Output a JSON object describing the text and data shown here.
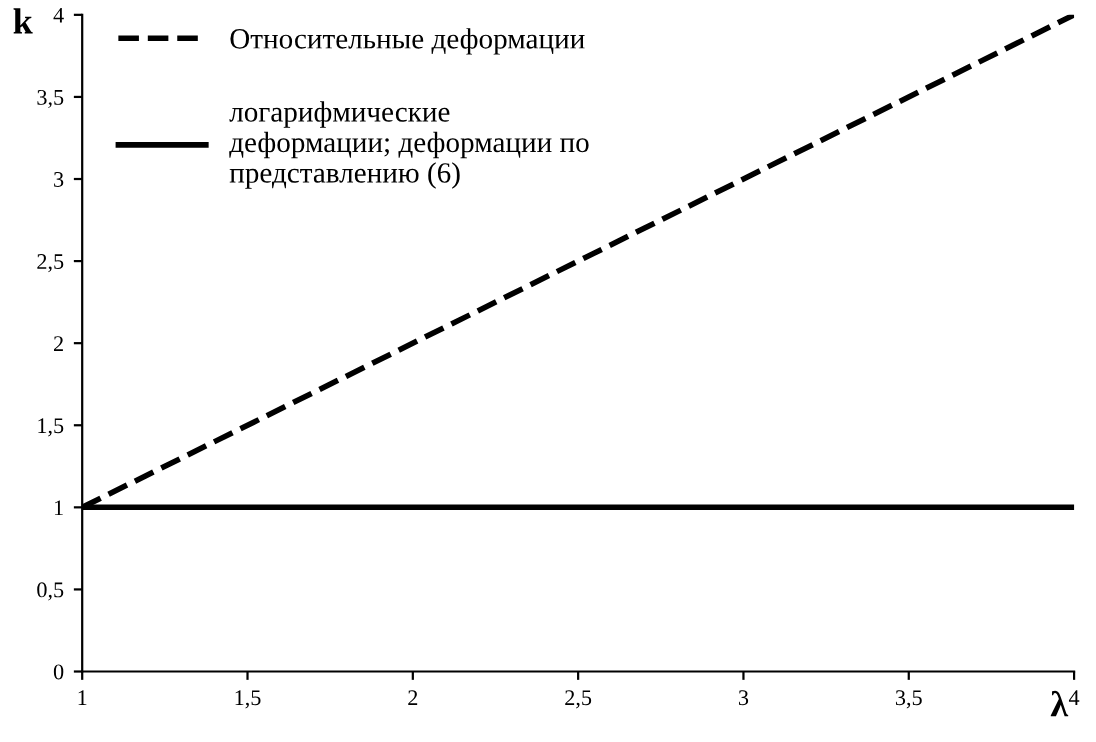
{
  "chart_data": {
    "type": "line",
    "xlabel": "λ",
    "ylabel": "k",
    "x": [
      1,
      4
    ],
    "series": [
      {
        "name": "Относительные деформации",
        "color": "#000000",
        "line_style": "dashed",
        "values": [
          1,
          4
        ]
      },
      {
        "name": "логарифмические\nдеформации; деформации по\nпредставлению (6)",
        "color": "#000000",
        "line_style": "solid",
        "values": [
          1,
          1
        ]
      }
    ],
    "xlim": [
      1,
      4
    ],
    "ylim": [
      0,
      4
    ],
    "xticks": [
      1,
      {
        "value": 1.5,
        "label": "1,5"
      },
      2,
      {
        "value": 2.5,
        "label": "2,5"
      },
      3,
      {
        "value": 3.5,
        "label": "3,5"
      },
      4
    ],
    "yticks": [
      0,
      {
        "value": 0.5,
        "label": "0,5"
      },
      1,
      {
        "value": 1.5,
        "label": "1,5"
      },
      2,
      {
        "value": 2.5,
        "label": "2,5"
      },
      3,
      {
        "value": 3.5,
        "label": "3,5"
      },
      4
    ],
    "grid": false,
    "legend": "top left",
    "marker": "none"
  }
}
